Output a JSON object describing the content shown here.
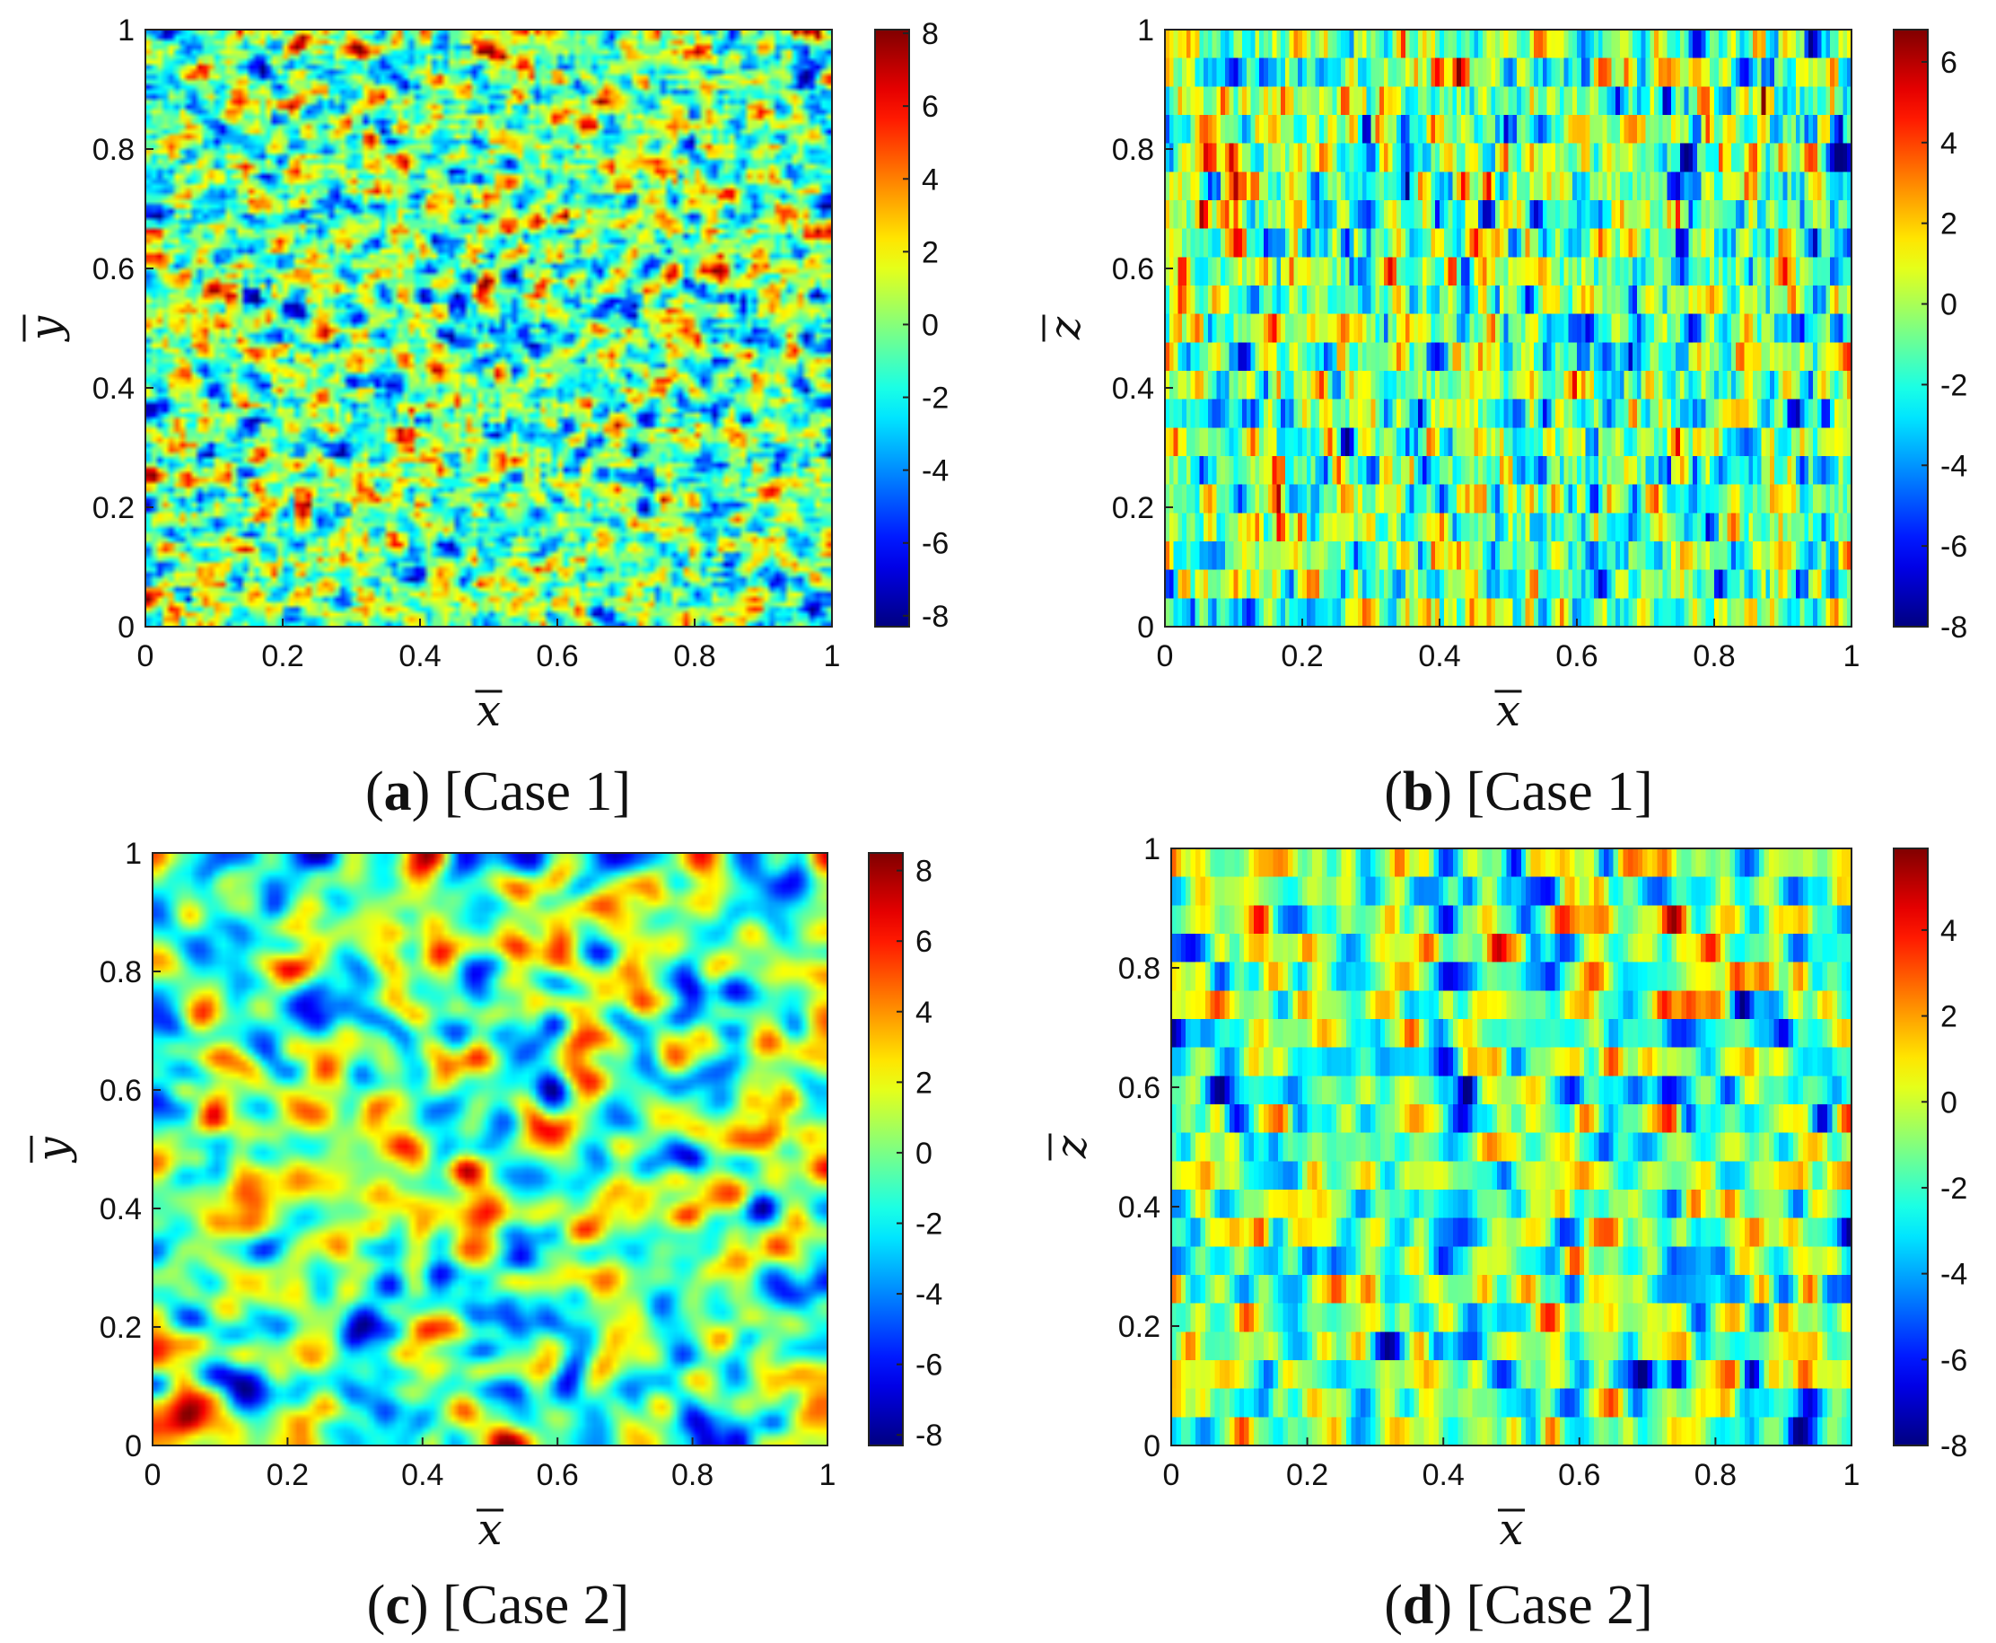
{
  "chart_data": [
    {
      "type": "heatmap",
      "caption_letter": "a",
      "caption_text": "[Case 1]",
      "xlabel": "x",
      "ylabel": "y",
      "xlim": [
        0,
        1
      ],
      "ylim": [
        0,
        1
      ],
      "x_ticks": [
        "0",
        "0.2",
        "0.4",
        "0.6",
        "0.8",
        "1"
      ],
      "y_ticks": [
        "0",
        "0.2",
        "0.4",
        "0.6",
        "0.8",
        "1"
      ],
      "colorbar": {
        "colormap": "jet",
        "range": [
          -8.3,
          8.1
        ],
        "ticks": [
          -8,
          -6,
          -4,
          -2,
          0,
          2,
          4,
          6,
          8
        ],
        "tick_labels": [
          "-8",
          "-6",
          "-4",
          "-2",
          "0",
          "2",
          "4",
          "6",
          "8"
        ]
      },
      "field": {
        "pattern": "fine-grained isotropic random field",
        "rows": 120,
        "cols": 120,
        "correlation": 1.0,
        "layered": false,
        "seed": 11
      }
    },
    {
      "type": "heatmap",
      "caption_letter": "b",
      "caption_text": "[Case 1]",
      "xlabel": "x",
      "ylabel": "z",
      "xlim": [
        0,
        1
      ],
      "ylim": [
        0,
        1
      ],
      "x_ticks": [
        "0",
        "0.2",
        "0.4",
        "0.6",
        "0.8",
        "1"
      ],
      "y_ticks": [
        "0",
        "0.2",
        "0.4",
        "0.6",
        "0.8",
        "1"
      ],
      "colorbar": {
        "colormap": "jet",
        "range": [
          -8,
          6.8
        ],
        "ticks": [
          -8,
          -6,
          -4,
          -2,
          0,
          2,
          4,
          6
        ],
        "tick_labels": [
          "-8",
          "-6",
          "-4",
          "-2",
          "0",
          "2",
          "4",
          "6"
        ]
      },
      "field": {
        "pattern": "vertically layered stripes",
        "rows": 21,
        "cols": 160,
        "correlation": 1.0,
        "layered": true,
        "seed": 23
      }
    },
    {
      "type": "heatmap",
      "caption_letter": "c",
      "caption_text": "[Case 2]",
      "xlabel": "x",
      "ylabel": "y",
      "xlim": [
        0,
        1
      ],
      "ylim": [
        0,
        1
      ],
      "x_ticks": [
        "0",
        "0.2",
        "0.4",
        "0.6",
        "0.8",
        "1"
      ],
      "y_ticks": [
        "0",
        "0.2",
        "0.4",
        "0.6",
        "0.8",
        "1"
      ],
      "colorbar": {
        "colormap": "jet",
        "range": [
          -8.3,
          8.5
        ],
        "ticks": [
          -8,
          -6,
          -4,
          -2,
          0,
          2,
          4,
          6,
          8
        ],
        "tick_labels": [
          "-8",
          "-6",
          "-4",
          "-2",
          "0",
          "2",
          "4",
          "6",
          "8"
        ]
      },
      "field": {
        "pattern": "correlated isotropic random field with large blobs",
        "rows": 100,
        "cols": 100,
        "correlation": 4.0,
        "layered": false,
        "seed": 37
      }
    },
    {
      "type": "heatmap",
      "caption_letter": "d",
      "caption_text": "[Case 2]",
      "xlabel": "x",
      "ylabel": "z",
      "xlim": [
        0,
        1
      ],
      "ylim": [
        0,
        1
      ],
      "x_ticks": [
        "0",
        "0.2",
        "0.4",
        "0.6",
        "0.8",
        "1"
      ],
      "y_ticks": [
        "0",
        "0.2",
        "0.4",
        "0.6",
        "0.8",
        "1"
      ],
      "colorbar": {
        "colormap": "jet",
        "range": [
          -8,
          5.9
        ],
        "ticks": [
          -8,
          -6,
          -4,
          -2,
          0,
          2,
          4
        ],
        "tick_labels": [
          "-8",
          "-6",
          "-4",
          "-2",
          "0",
          "2",
          "4"
        ]
      },
      "field": {
        "pattern": "layered stripes with horizontal correlation",
        "rows": 21,
        "cols": 140,
        "correlation": 3.0,
        "layered": true,
        "seed": 53
      }
    }
  ]
}
